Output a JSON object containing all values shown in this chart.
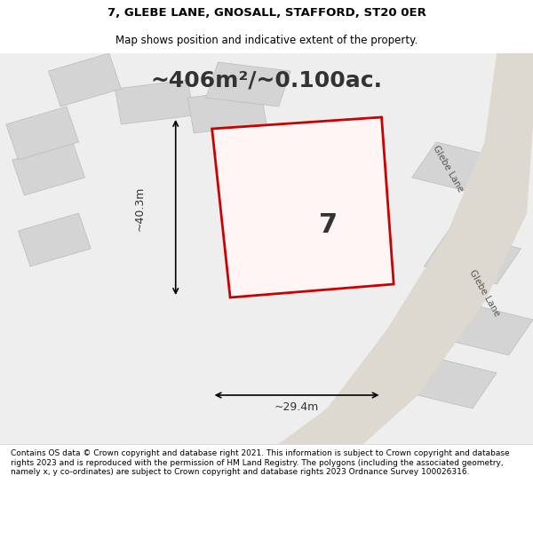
{
  "title": "7, GLEBE LANE, GNOSALL, STAFFORD, ST20 0ER",
  "subtitle": "Map shows position and indicative extent of the property.",
  "area_text": "~406m²/~0.100ac.",
  "label_7": "7",
  "dim_width": "~29.4m",
  "dim_height": "~40.3m",
  "footer": "Contains OS data © Crown copyright and database right 2021. This information is subject to Crown copyright and database rights 2023 and is reproduced with the permission of HM Land Registry. The polygons (including the associated geometry, namely x, y co-ordinates) are subject to Crown copyright and database rights 2023 Ordnance Survey 100026316.",
  "background_color": "#f5f5f5",
  "map_background": "#f0f0f0",
  "road_color": "#d0d0d0",
  "highlight_color": "#cc0000",
  "building_fill": "#d8d8d8",
  "building_edge": "#aaaaaa",
  "road_label": "Glebe Lane"
}
